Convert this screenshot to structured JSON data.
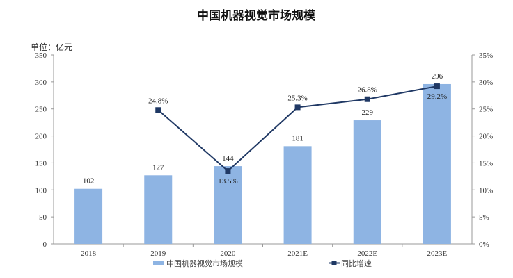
{
  "chart_data": {
    "type": "bar",
    "title": "中国机器视觉市场规模",
    "unit_label": "单位：亿元",
    "categories": [
      "2018",
      "2019",
      "2020",
      "2021E",
      "2022E",
      "2023E"
    ],
    "series": [
      {
        "name": "中国机器视觉市场规模",
        "type": "bar",
        "axis": "left",
        "color": "#8EB4E3",
        "values": [
          102,
          127,
          144,
          181,
          229,
          296
        ],
        "labels": [
          "102",
          "127",
          "144",
          "181",
          "229",
          "296"
        ]
      },
      {
        "name": "同比增速",
        "type": "line",
        "axis": "right",
        "color": "#1F3864",
        "values": [
          null,
          24.8,
          13.5,
          25.3,
          26.8,
          29.2
        ],
        "labels": [
          "",
          "24.8%",
          "13.5%",
          "25.3%",
          "26.8%",
          "29.2%"
        ]
      }
    ],
    "y_left": {
      "min": 0,
      "max": 350,
      "step": 50,
      "ticks": [
        "0",
        "50",
        "100",
        "150",
        "200",
        "250",
        "300",
        "350"
      ]
    },
    "y_right": {
      "min": 0,
      "max": 35,
      "step": 5,
      "ticks": [
        "0%",
        "5%",
        "10%",
        "15%",
        "20%",
        "25%",
        "30%",
        "35%"
      ]
    },
    "xlabel": "",
    "ylabel": "",
    "grid": false,
    "legend_position": "bottom"
  }
}
